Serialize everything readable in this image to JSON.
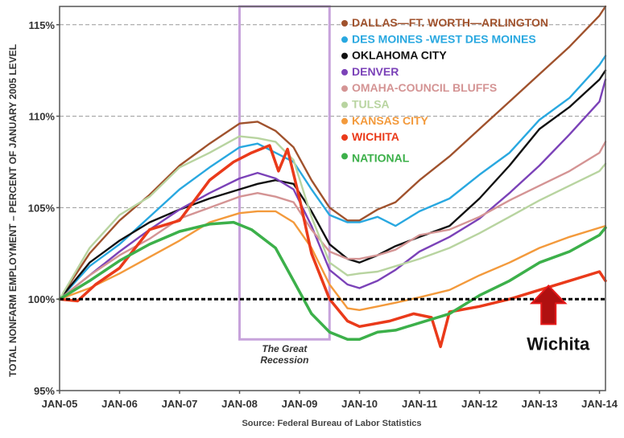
{
  "chart_data": {
    "type": "line",
    "ylabel": "TOTAL NONFARM EMPLOYMENT – PERCENT OF JANUARY 2005 LEVEL",
    "source": "Source: Federal Bureau of Labor Statistics",
    "recession_label_line1": "The Great",
    "recession_label_line2": "Recession",
    "recession_range": [
      2008.0,
      2009.5
    ],
    "ylim": [
      95,
      116
    ],
    "xlim": [
      2005.0,
      2014.1
    ],
    "y_ticks": [
      {
        "v": 95,
        "label": "95%"
      },
      {
        "v": 100,
        "label": "100%"
      },
      {
        "v": 105,
        "label": "105%"
      },
      {
        "v": 110,
        "label": "110%"
      },
      {
        "v": 115,
        "label": "115%"
      }
    ],
    "x_ticks": [
      {
        "v": 2005,
        "label": "JAN-05"
      },
      {
        "v": 2006,
        "label": "JAN-06"
      },
      {
        "v": 2007,
        "label": "JAN-07"
      },
      {
        "v": 2008,
        "label": "JAN-08"
      },
      {
        "v": 2009,
        "label": "JAN-09"
      },
      {
        "v": 2010,
        "label": "JAN-10"
      },
      {
        "v": 2011,
        "label": "JAN-11"
      },
      {
        "v": 2012,
        "label": "JAN-12"
      },
      {
        "v": 2013,
        "label": "JAN-13"
      },
      {
        "v": 2014,
        "label": "JAN-14"
      }
    ],
    "annotation": {
      "text": "Wichita",
      "x": 2013.15,
      "y": 101.0,
      "color": "#b01010"
    },
    "series": [
      {
        "name": "DALLAS—FT. WORTH—ARLINGTON",
        "color": "#a0522d",
        "x": [
          2005.0,
          2005.5,
          2006.0,
          2006.5,
          2007.0,
          2007.5,
          2008.0,
          2008.3,
          2008.6,
          2008.9,
          2009.2,
          2009.5,
          2009.8,
          2010.0,
          2010.3,
          2010.6,
          2011.0,
          2011.5,
          2012.0,
          2012.5,
          2013.0,
          2013.5,
          2014.0,
          2014.1
        ],
        "y": [
          100.0,
          102.5,
          104.3,
          105.7,
          107.3,
          108.5,
          109.6,
          109.7,
          109.2,
          108.3,
          106.5,
          105.0,
          104.3,
          104.3,
          104.9,
          105.3,
          106.5,
          107.8,
          109.3,
          110.8,
          112.3,
          113.8,
          115.5,
          116.0
        ]
      },
      {
        "name": "DES MOINES -WEST DES MOINES",
        "color": "#29a8e0",
        "x": [
          2005.0,
          2005.5,
          2006.0,
          2006.5,
          2007.0,
          2007.5,
          2008.0,
          2008.3,
          2008.6,
          2008.9,
          2009.2,
          2009.5,
          2009.8,
          2010.0,
          2010.3,
          2010.6,
          2011.0,
          2011.5,
          2012.0,
          2012.5,
          2013.0,
          2013.5,
          2014.0,
          2014.1
        ],
        "y": [
          100.0,
          101.8,
          103.0,
          104.5,
          106.0,
          107.2,
          108.3,
          108.5,
          108.0,
          107.5,
          106.0,
          104.6,
          104.2,
          104.2,
          104.5,
          104.0,
          104.8,
          105.5,
          106.8,
          108.0,
          109.8,
          111.0,
          112.8,
          113.3
        ]
      },
      {
        "name": "OKLAHOMA CITY",
        "color": "#111111",
        "x": [
          2005.0,
          2005.5,
          2006.0,
          2006.5,
          2007.0,
          2007.5,
          2008.0,
          2008.3,
          2008.6,
          2008.9,
          2009.2,
          2009.5,
          2009.8,
          2010.0,
          2010.3,
          2010.6,
          2011.0,
          2011.5,
          2012.0,
          2012.5,
          2013.0,
          2013.5,
          2014.0,
          2014.1
        ],
        "y": [
          100.0,
          102.0,
          103.2,
          104.2,
          104.9,
          105.5,
          106.0,
          106.3,
          106.5,
          106.3,
          104.8,
          103.0,
          102.2,
          102.0,
          102.4,
          102.9,
          103.4,
          104.0,
          105.5,
          107.3,
          109.3,
          110.5,
          112.0,
          112.5
        ]
      },
      {
        "name": "DENVER",
        "color": "#7b42b8",
        "x": [
          2005.0,
          2005.5,
          2006.0,
          2006.5,
          2007.0,
          2007.5,
          2008.0,
          2008.3,
          2008.6,
          2008.9,
          2009.2,
          2009.5,
          2009.8,
          2010.0,
          2010.3,
          2010.6,
          2011.0,
          2011.5,
          2012.0,
          2012.5,
          2013.0,
          2013.5,
          2014.0,
          2014.1
        ],
        "y": [
          100.0,
          101.3,
          102.6,
          103.8,
          104.9,
          105.8,
          106.6,
          106.9,
          106.6,
          106.0,
          104.0,
          101.6,
          100.8,
          100.6,
          101.0,
          101.6,
          102.6,
          103.4,
          104.4,
          105.8,
          107.3,
          109.0,
          110.8,
          112.0
        ]
      },
      {
        "name": "OMAHA-COUNCIL BLUFFS",
        "color": "#d49494",
        "x": [
          2005.0,
          2005.5,
          2006.0,
          2006.5,
          2007.0,
          2007.5,
          2008.0,
          2008.3,
          2008.6,
          2008.9,
          2009.2,
          2009.5,
          2009.8,
          2010.0,
          2010.3,
          2010.6,
          2011.0,
          2011.5,
          2012.0,
          2012.5,
          2013.0,
          2013.5,
          2014.0,
          2014.1
        ],
        "y": [
          100.0,
          101.3,
          102.4,
          103.3,
          104.4,
          105.0,
          105.6,
          105.8,
          105.6,
          105.3,
          103.8,
          102.6,
          102.2,
          102.2,
          102.4,
          102.7,
          103.5,
          103.8,
          104.5,
          105.4,
          106.2,
          107.0,
          108.0,
          108.6
        ]
      },
      {
        "name": "TULSA",
        "color": "#b8d4a0",
        "x": [
          2005.0,
          2005.5,
          2006.0,
          2006.5,
          2007.0,
          2007.5,
          2008.0,
          2008.3,
          2008.6,
          2008.9,
          2009.2,
          2009.5,
          2009.8,
          2010.0,
          2010.3,
          2010.6,
          2011.0,
          2011.5,
          2012.0,
          2012.5,
          2013.0,
          2013.5,
          2014.0,
          2014.1
        ],
        "y": [
          100.0,
          102.8,
          104.6,
          105.6,
          107.2,
          108.0,
          108.9,
          108.8,
          108.6,
          107.6,
          104.5,
          102.0,
          101.3,
          101.4,
          101.5,
          101.8,
          102.2,
          102.8,
          103.6,
          104.5,
          105.4,
          106.2,
          107.0,
          107.4
        ]
      },
      {
        "name": "KANSAS CITY",
        "color": "#f39a3c",
        "x": [
          2005.0,
          2005.5,
          2006.0,
          2006.5,
          2007.0,
          2007.5,
          2008.0,
          2008.3,
          2008.6,
          2008.9,
          2009.2,
          2009.5,
          2009.8,
          2010.0,
          2010.3,
          2010.6,
          2011.0,
          2011.5,
          2012.0,
          2012.5,
          2013.0,
          2013.5,
          2014.0,
          2014.1
        ],
        "y": [
          100.0,
          100.6,
          101.4,
          102.3,
          103.2,
          104.2,
          104.7,
          104.8,
          104.8,
          104.2,
          102.8,
          100.8,
          99.5,
          99.4,
          99.6,
          99.8,
          100.1,
          100.5,
          101.3,
          102.0,
          102.8,
          103.4,
          103.9,
          104.0
        ]
      },
      {
        "name": "WICHITA",
        "color": "#ea3a1a",
        "x": [
          2005.0,
          2005.3,
          2005.6,
          2006.0,
          2006.5,
          2007.0,
          2007.5,
          2007.9,
          2008.2,
          2008.5,
          2008.65,
          2008.8,
          2009.0,
          2009.2,
          2009.5,
          2009.8,
          2010.0,
          2010.5,
          2010.9,
          2011.2,
          2011.35,
          2011.5,
          2012.0,
          2012.5,
          2013.0,
          2013.5,
          2014.0,
          2014.1
        ],
        "y": [
          100.0,
          99.9,
          100.8,
          101.7,
          103.8,
          104.3,
          106.5,
          107.5,
          108.0,
          108.4,
          107.0,
          108.2,
          105.5,
          102.5,
          100.0,
          98.8,
          98.5,
          98.8,
          99.2,
          99.0,
          97.4,
          99.3,
          99.6,
          100.0,
          100.5,
          101.0,
          101.5,
          101.0
        ]
      },
      {
        "name": "NATIONAL",
        "color": "#3cb04a",
        "x": [
          2005.0,
          2005.5,
          2006.0,
          2006.5,
          2007.0,
          2007.5,
          2007.9,
          2008.2,
          2008.6,
          2008.9,
          2009.2,
          2009.5,
          2009.8,
          2010.0,
          2010.3,
          2010.6,
          2011.0,
          2011.5,
          2012.0,
          2012.5,
          2013.0,
          2013.5,
          2014.0,
          2014.1
        ],
        "y": [
          100.0,
          101.0,
          102.1,
          103.0,
          103.7,
          104.1,
          104.2,
          103.8,
          102.8,
          101.0,
          99.2,
          98.2,
          97.8,
          97.8,
          98.2,
          98.3,
          98.7,
          99.2,
          100.2,
          101.0,
          102.0,
          102.6,
          103.5,
          103.9
        ]
      }
    ]
  }
}
